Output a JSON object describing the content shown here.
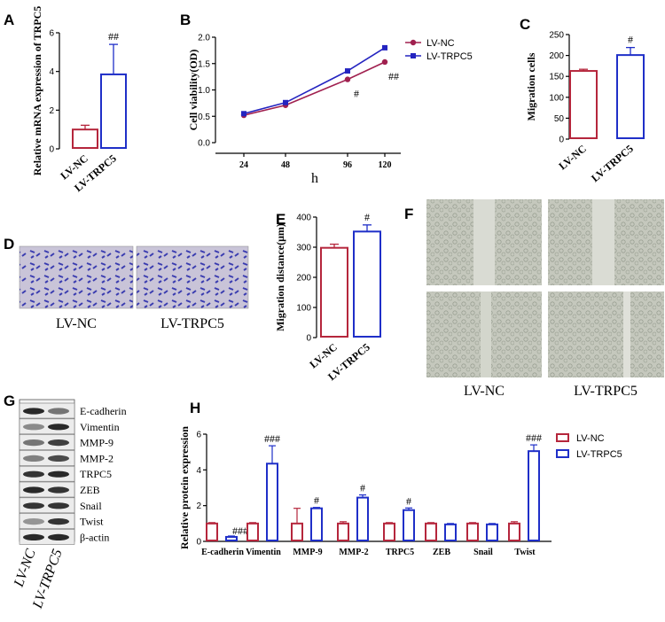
{
  "panels": {
    "A": "A",
    "B": "B",
    "C": "C",
    "D": "D",
    "E": "E",
    "F": "F",
    "G": "G",
    "H": "H"
  },
  "groups": {
    "nc": "LV-NC",
    "trpc5": "LV-TRPC5"
  },
  "colors": {
    "nc": "#b5263c",
    "trpc5": "#1f2fc8",
    "line_nc": "#a0204f",
    "line_trpc5": "#2424c0"
  },
  "chart_data": [
    {
      "id": "A",
      "type": "bar",
      "ylabel": "Relative mRNA expression of TRPC5",
      "ylim": [
        0,
        6
      ],
      "yticks": [
        0,
        2,
        4,
        6
      ],
      "categories": [
        "LV-NC",
        "LV-TRPC5"
      ],
      "values": [
        1.0,
        3.85
      ],
      "errors": [
        0.22,
        1.55
      ],
      "annotations": [
        "",
        "##"
      ]
    },
    {
      "id": "B",
      "type": "line",
      "ylabel": "Cell viability(OD)",
      "xlabel": "h",
      "x": [
        "24",
        "48",
        "96",
        "120"
      ],
      "ylim": [
        0,
        2.0
      ],
      "yticks": [
        "0.0",
        "0.5",
        "1.0",
        "1.5",
        "2.0"
      ],
      "series": [
        {
          "name": "LV-NC",
          "values": [
            0.52,
            0.71,
            1.2,
            1.53
          ]
        },
        {
          "name": "LV-TRPC5",
          "values": [
            0.55,
            0.76,
            1.36,
            1.8
          ]
        }
      ],
      "annotations": [
        {
          "x": "96",
          "text": "#"
        },
        {
          "x": "120",
          "text": "##"
        }
      ]
    },
    {
      "id": "C",
      "type": "bar",
      "ylabel": "Migration cells",
      "ylim": [
        0,
        250
      ],
      "yticks": [
        0,
        50,
        100,
        150,
        200,
        250
      ],
      "categories": [
        "LV-NC",
        "LV-TRPC5"
      ],
      "values": [
        163,
        201
      ],
      "errors": [
        4,
        18
      ],
      "annotations": [
        "",
        "#"
      ]
    },
    {
      "id": "E",
      "type": "bar",
      "ylabel": "Migration distance(μm)",
      "ylim": [
        0,
        400
      ],
      "yticks": [
        0,
        100,
        200,
        300,
        400
      ],
      "categories": [
        "LV-NC",
        "LV-TRPC5"
      ],
      "values": [
        298,
        352
      ],
      "errors": [
        12,
        22
      ],
      "annotations": [
        "",
        "#"
      ]
    },
    {
      "id": "H",
      "type": "bar",
      "ylabel": "Relative protein expression",
      "ylim": [
        0,
        6
      ],
      "yticks": [
        0,
        2,
        4,
        6
      ],
      "categories": [
        "E-cadherin",
        "Vimentin",
        "MMP-9",
        "MMP-2",
        "TRPC5",
        "ZEB",
        "Snail",
        "Twist"
      ],
      "series": [
        {
          "name": "LV-NC",
          "values": [
            1,
            1,
            1,
            1,
            1,
            1,
            1,
            1
          ],
          "errors": [
            0.05,
            0.05,
            0.85,
            0.1,
            0.05,
            0.05,
            0.05,
            0.1
          ]
        },
        {
          "name": "LV-TRPC5",
          "values": [
            0.25,
            4.35,
            1.85,
            2.45,
            1.75,
            0.95,
            0.95,
            5.05
          ],
          "errors": [
            0.05,
            1.0,
            0.05,
            0.15,
            0.12,
            0.05,
            0.05,
            0.35
          ]
        }
      ],
      "annotations": [
        "###",
        "###",
        "#",
        "#",
        "#",
        "",
        "",
        "###"
      ]
    }
  ],
  "blot": {
    "proteins": [
      "E-cadherin",
      "Vimentin",
      "MMP-9",
      "MMP-2",
      "TRPC5",
      "ZEB",
      "Snail",
      "Twist",
      "β-actin"
    ],
    "lanes": [
      "LV-NC",
      "LV-TRPC5"
    ]
  }
}
